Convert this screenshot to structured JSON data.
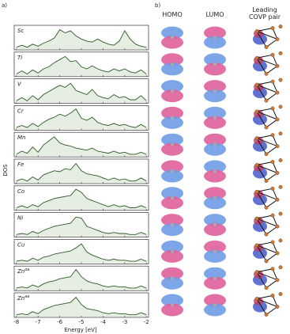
{
  "panel_a": {
    "label": "a)",
    "ylabel": "DOS",
    "xlabel": "Energy [eV]",
    "xlim": [
      -8.1,
      -1.9
    ],
    "xticks": [
      -8,
      -7,
      -6,
      -5,
      -4,
      -3,
      -2
    ],
    "x": [
      -8,
      -7.75,
      -7.5,
      -7.25,
      -7,
      -6.75,
      -6.5,
      -6.25,
      -6,
      -5.75,
      -5.5,
      -5.25,
      -5,
      -4.75,
      -4.5,
      -4.25,
      -4,
      -3.75,
      -3.5,
      -3.25,
      -3,
      -2.75,
      -2.5,
      -2.25,
      -2
    ],
    "plots": [
      {
        "label": "Sc",
        "values": [
          0.05,
          0.15,
          0.05,
          0.2,
          0.1,
          0.25,
          0.35,
          0.5,
          0.9,
          0.75,
          0.85,
          0.6,
          0.45,
          0.35,
          0.3,
          0.45,
          0.3,
          0.2,
          0.15,
          0.35,
          0.85,
          0.45,
          0.2,
          0.1,
          0.05
        ]
      },
      {
        "label": "Ti",
        "values": [
          0.05,
          0.2,
          0.05,
          0.25,
          0.1,
          0.3,
          0.4,
          0.6,
          0.75,
          0.9,
          0.65,
          0.7,
          0.4,
          0.3,
          0.45,
          0.3,
          0.2,
          0.15,
          0.3,
          0.2,
          0.3,
          0.15,
          0.1,
          0.25,
          0.05
        ]
      },
      {
        "label": "V",
        "values": [
          0.05,
          0.2,
          0.05,
          0.3,
          0.1,
          0.35,
          0.5,
          0.65,
          0.8,
          0.7,
          0.9,
          0.55,
          0.45,
          0.35,
          0.6,
          0.3,
          0.2,
          0.15,
          0.35,
          0.2,
          0.25,
          0.1,
          0.1,
          0.3,
          0.05
        ]
      },
      {
        "label": "Cr",
        "values": [
          0.05,
          0.15,
          0.05,
          0.25,
          0.1,
          0.3,
          0.45,
          0.55,
          0.7,
          0.6,
          0.75,
          0.95,
          0.5,
          0.4,
          0.55,
          0.3,
          0.2,
          0.15,
          0.25,
          0.15,
          0.2,
          0.1,
          0.05,
          0.2,
          0.05
        ]
      },
      {
        "label": "Mn",
        "values": [
          0.05,
          0.2,
          0.1,
          0.4,
          0.15,
          0.5,
          0.7,
          0.9,
          0.6,
          0.5,
          0.45,
          0.35,
          0.3,
          0.25,
          0.35,
          0.2,
          0.15,
          0.1,
          0.2,
          0.1,
          0.15,
          0.05,
          0.05,
          0.15,
          0.05
        ]
      },
      {
        "label": "Fe",
        "values": [
          0.05,
          0.15,
          0.05,
          0.25,
          0.1,
          0.35,
          0.45,
          0.55,
          0.5,
          0.65,
          0.6,
          0.9,
          0.55,
          0.4,
          0.35,
          0.3,
          0.2,
          0.1,
          0.2,
          0.1,
          0.15,
          0.05,
          0.05,
          0.2,
          0.05
        ]
      },
      {
        "label": "Co",
        "values": [
          0.05,
          0.15,
          0.05,
          0.2,
          0.1,
          0.3,
          0.4,
          0.5,
          0.55,
          0.6,
          0.65,
          0.95,
          0.8,
          0.5,
          0.4,
          0.3,
          0.2,
          0.1,
          0.2,
          0.1,
          0.15,
          0.05,
          0.05,
          0.15,
          0.05
        ]
      },
      {
        "label": "Ni",
        "values": [
          0.05,
          0.1,
          0.05,
          0.2,
          0.1,
          0.25,
          0.35,
          0.45,
          0.5,
          0.55,
          0.6,
          0.9,
          0.85,
          0.45,
          0.35,
          0.25,
          0.15,
          0.1,
          0.15,
          0.1,
          0.1,
          0.05,
          0.05,
          0.15,
          0.05
        ]
      },
      {
        "label": "Cu",
        "values": [
          0.05,
          0.1,
          0.05,
          0.2,
          0.1,
          0.25,
          0.3,
          0.4,
          0.45,
          0.5,
          0.55,
          0.7,
          0.9,
          0.5,
          0.35,
          0.25,
          0.15,
          0.1,
          0.15,
          0.1,
          0.1,
          0.05,
          0.05,
          0.15,
          0.05
        ]
      },
      {
        "label": "Zn",
        "sup": "oa",
        "values": [
          0.05,
          0.1,
          0.05,
          0.2,
          0.1,
          0.25,
          0.35,
          0.4,
          0.5,
          0.55,
          0.6,
          0.95,
          0.6,
          0.4,
          0.3,
          0.25,
          0.15,
          0.1,
          0.15,
          0.1,
          0.1,
          0.05,
          0.05,
          0.15,
          0.05
        ]
      },
      {
        "label": "Zn",
        "sup": "aa",
        "values": [
          0.05,
          0.1,
          0.05,
          0.2,
          0.1,
          0.3,
          0.4,
          0.5,
          0.55,
          0.6,
          0.65,
          0.9,
          0.55,
          0.35,
          0.3,
          0.25,
          0.15,
          0.1,
          0.15,
          0.1,
          0.1,
          0.05,
          0.05,
          0.15,
          0.05
        ]
      }
    ]
  },
  "panel_b": {
    "label": "b)",
    "columns": [
      "HOMO",
      "LUMO",
      "Leading COVP pair"
    ]
  }
}
